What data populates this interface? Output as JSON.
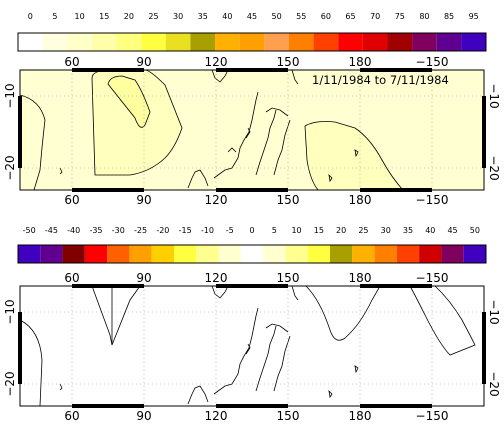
{
  "top_colorbar": {
    "labels": [
      "0",
      "5",
      "10",
      "15",
      "20",
      "25",
      "30",
      "35",
      "40",
      "45",
      "50",
      "55",
      "60",
      "65",
      "70",
      "75",
      "80",
      "85",
      "95"
    ],
    "colors": [
      "#ffffff",
      "#ffffe0",
      "#ffffc8",
      "#ffffaa",
      "#ffff80",
      "#ffff40",
      "#e8e020",
      "#a8a000",
      "#ffb000",
      "#ffa000",
      "#ffa050",
      "#ff8000",
      "#ff4000",
      "#ff0000",
      "#e00000",
      "#a00000",
      "#800060",
      "#600090",
      "#4000c0"
    ]
  },
  "bottom_colorbar": {
    "labels": [
      "-50",
      "-45",
      "-40",
      "-35",
      "-30",
      "-25",
      "-20",
      "-15",
      "-10",
      "-5",
      "0",
      "5",
      "10",
      "15",
      "20",
      "25",
      "30",
      "35",
      "40",
      "45",
      "50"
    ],
    "colors": [
      "#4000c0",
      "#600090",
      "#800000",
      "#ff0000",
      "#ff6000",
      "#ffa000",
      "#ffd000",
      "#ffff40",
      "#ffff90",
      "#ffffd0",
      "#ffffff",
      "#ffffd0",
      "#ffff90",
      "#ffff40",
      "#a8a000",
      "#ffb000",
      "#ff8000",
      "#ff4000",
      "#d00000",
      "#800060",
      "#4000c0"
    ]
  },
  "map_top": {
    "title": "1/11/1984  to  7/11/1984",
    "lon_labels": [
      "60",
      "90",
      "120",
      "150",
      "180",
      "−150"
    ],
    "lat_labels": [
      "−10",
      "−20"
    ],
    "fill": "#ffffd2"
  },
  "map_bottom": {
    "lon_labels": [
      "60",
      "90",
      "120",
      "150",
      "180",
      "−150"
    ],
    "lat_labels": [
      "−10",
      "−20"
    ],
    "fill": "#ffffff"
  }
}
